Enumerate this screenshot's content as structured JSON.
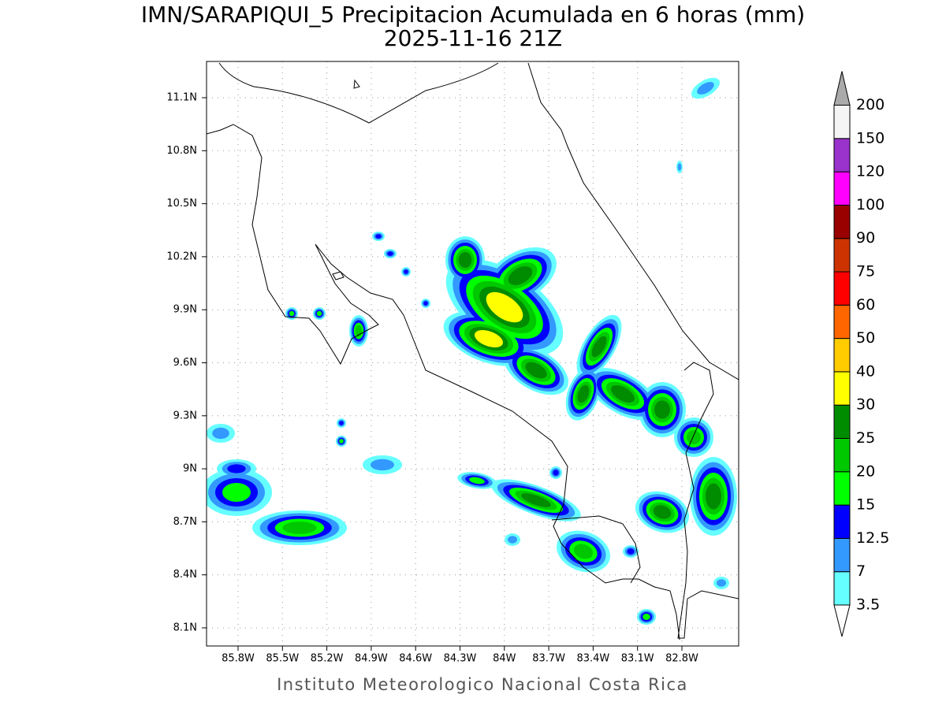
{
  "title": "IMN/SARAPIQUI_5 Precipitacion Acumulada en 6 horas (mm)",
  "subtitle": "2025-11-16 21Z",
  "lat_labels": [
    "11.1N",
    "10.8N",
    "10.5N",
    "10.2N",
    "9.9N",
    "9.6N",
    "9.3N",
    "9N",
    "8.7N",
    "8.4N",
    "8.1N"
  ],
  "lon_labels": [
    "85.8W",
    "85.5W",
    "85.2W",
    "84.9W",
    "84.6W",
    "84.3W",
    "84W",
    "83.7W",
    "83.4W",
    "83.1W",
    "82.8W"
  ],
  "colorbar": {
    "labels": [
      "3.5",
      "7",
      "12.5",
      "15",
      "20",
      "25",
      "30",
      "40",
      "50",
      "60",
      "75",
      "90",
      "100",
      "120",
      "150",
      "200"
    ],
    "colors": [
      "#ffffff",
      "#66ffff",
      "#3399ff",
      "#0000ff",
      "#00ff00",
      "#00c800",
      "#008c00",
      "#ffff00",
      "#ffcc00",
      "#ff6600",
      "#ff0000",
      "#cc3300",
      "#990000",
      "#ff00ff",
      "#9933cc",
      "#f5f5f5",
      "#aaaaaa"
    ]
  },
  "footer": "Instituto Meteorologico Nacional Costa Rica"
}
